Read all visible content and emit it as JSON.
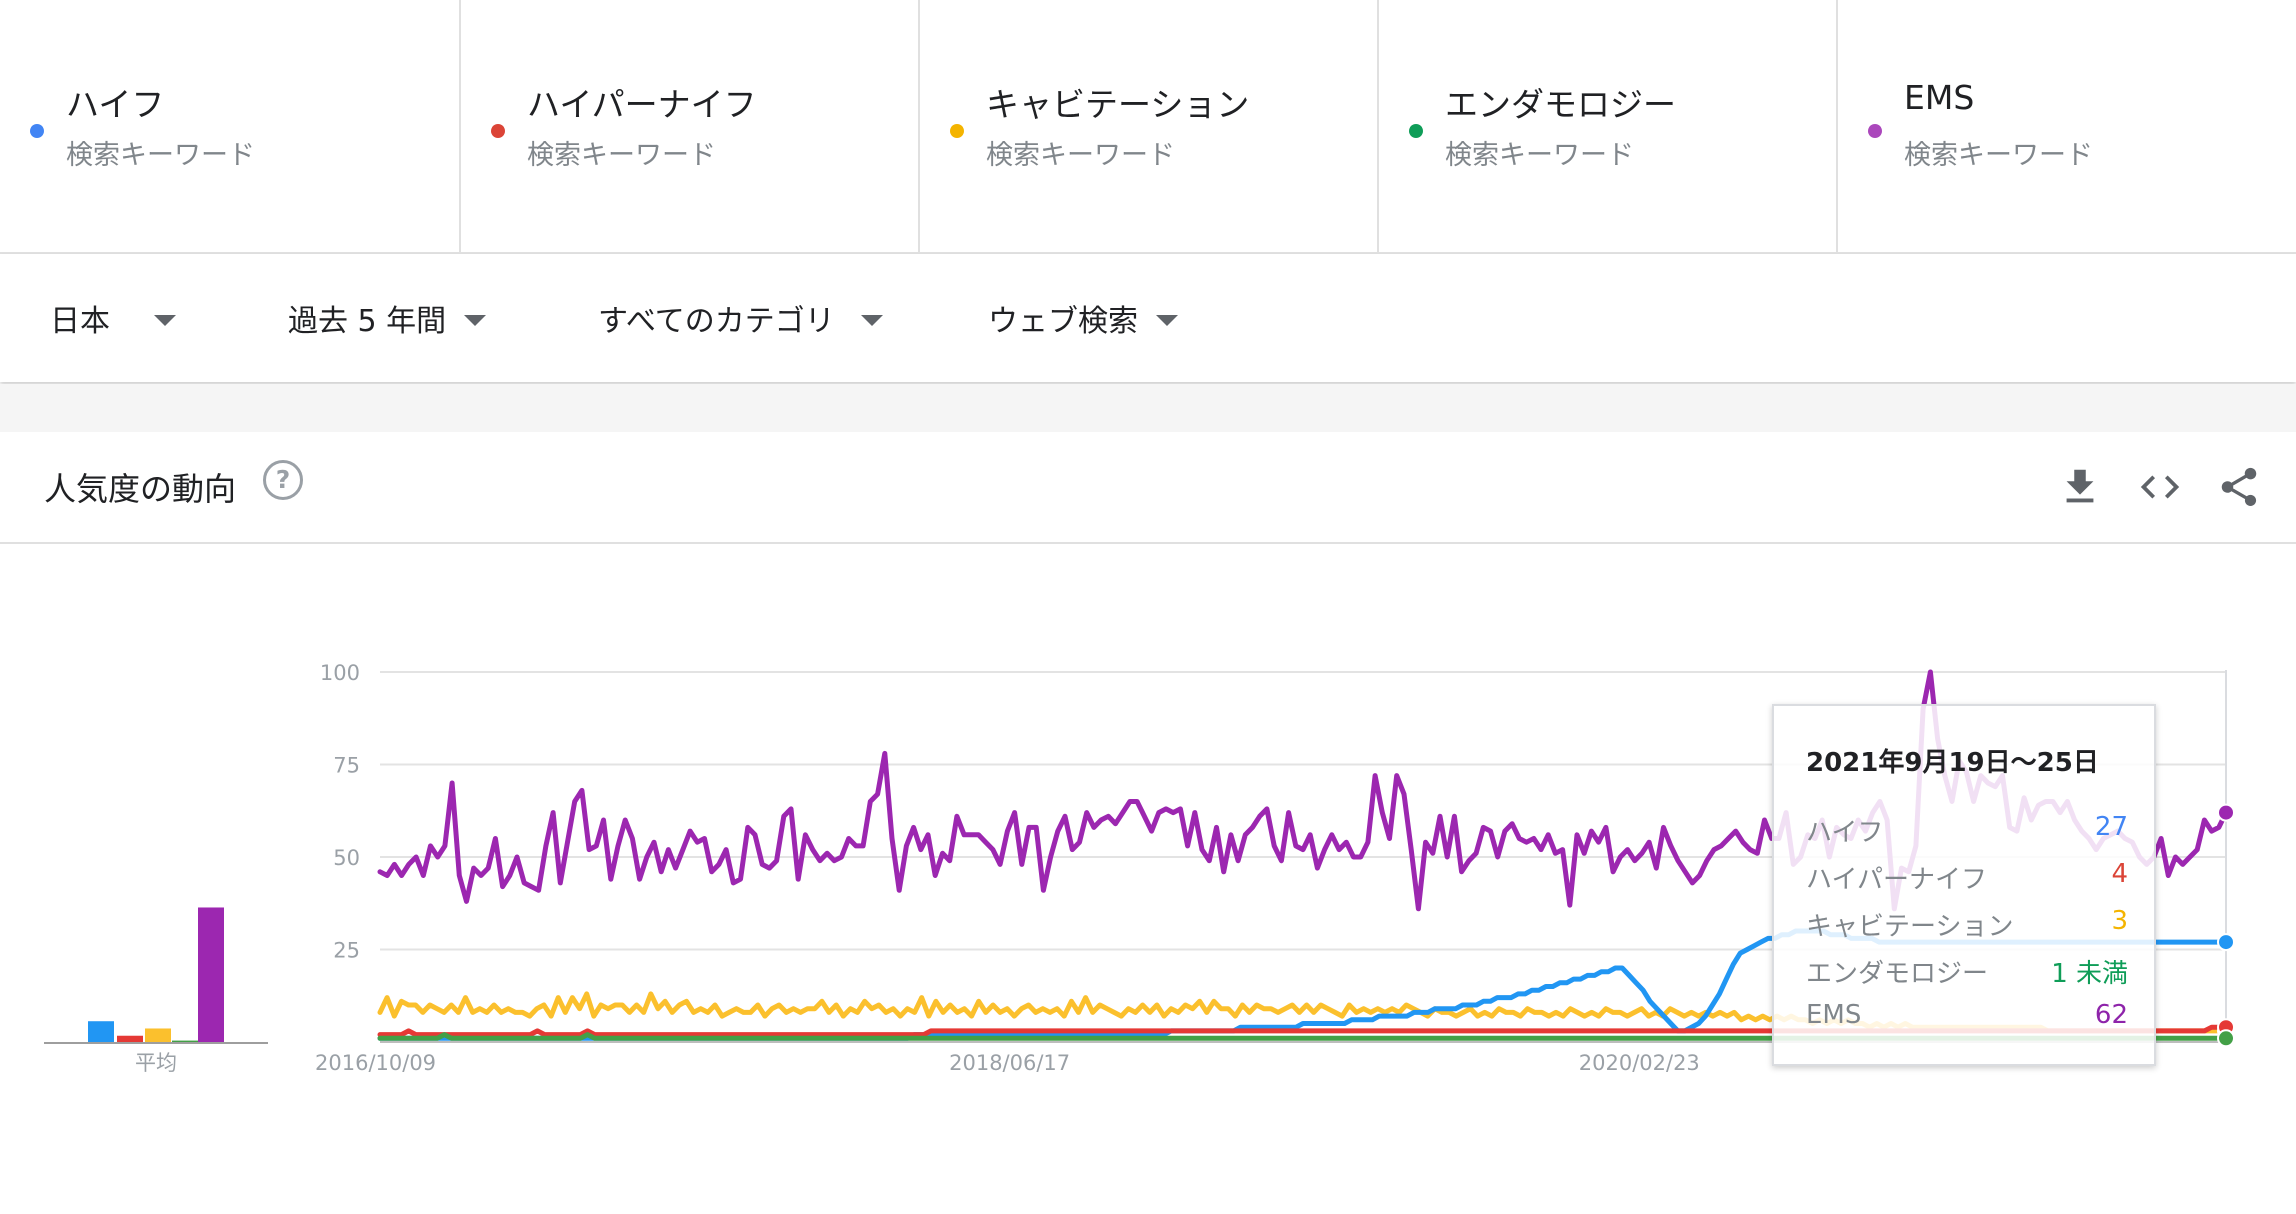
{
  "terms": [
    {
      "name": "ハイフ",
      "type": "検索キーワード",
      "color": "#4285f4"
    },
    {
      "name": "ハイパーナイフ",
      "type": "検索キーワード",
      "color": "#db4437"
    },
    {
      "name": "キャビテーション",
      "type": "検索キーワード",
      "color": "#f4b400"
    },
    {
      "name": "エンダモロジー",
      "type": "検索キーワード",
      "color": "#0f9d58"
    },
    {
      "name": "EMS",
      "type": "検索キーワード",
      "color": "#ab47bc"
    }
  ],
  "filters": {
    "region": "日本",
    "period": "過去 5 年間",
    "category": "すべてのカテゴリ",
    "search_type": "ウェブ検索"
  },
  "section": {
    "title": "人気度の動向",
    "help_glyph": "?",
    "actions": [
      "download-icon",
      "embed-icon",
      "share-icon"
    ]
  },
  "tooltip": {
    "date": "2021年9月19日〜25日",
    "rows": [
      {
        "label": "ハイフ",
        "value": "27",
        "color": "#4285f4"
      },
      {
        "label": "ハイパーナイフ",
        "value": "4",
        "color": "#db4437"
      },
      {
        "label": "キャビテーション",
        "value": "3",
        "color": "#f4b400"
      },
      {
        "label": "エンダモロジー",
        "value": "1 未満",
        "color": "#0f9d58"
      },
      {
        "label": "EMS",
        "value": "62",
        "color": "#8e24aa"
      }
    ]
  },
  "chart_data": {
    "type": "line",
    "average_label": "平均",
    "averages": [
      9,
      3,
      6,
      1,
      56
    ],
    "ylim": [
      0,
      100
    ],
    "y_ticks": [
      25,
      50,
      75,
      100
    ],
    "x_tick_labels": [
      "2016/10/09",
      "2018/06/17",
      "2020/02/23"
    ],
    "x_start": "2016/10/09",
    "x_end": "2021/09/19",
    "grid": true,
    "series": [
      {
        "name": "ハイフ",
        "color": "#2196f3",
        "values": [
          1,
          1,
          1,
          1,
          1,
          1,
          1,
          1,
          1,
          1,
          1,
          1,
          1,
          1,
          1,
          1,
          1,
          1,
          1,
          1,
          1,
          1,
          1,
          1,
          1,
          1,
          1,
          1,
          1,
          1,
          1,
          1,
          1,
          1,
          1,
          1,
          1,
          1,
          1,
          1,
          1,
          1,
          1,
          1,
          1,
          1,
          1,
          1,
          1,
          1,
          1,
          1,
          1,
          1,
          1,
          1,
          1,
          1,
          1,
          1,
          1,
          1,
          1,
          1,
          1,
          1,
          1,
          1,
          1,
          1,
          1,
          1,
          1,
          1,
          1,
          1,
          1,
          2,
          2,
          2,
          2,
          2,
          2,
          2,
          2,
          2,
          2,
          2,
          2,
          2,
          2,
          2,
          2,
          2,
          2,
          2,
          2,
          2,
          2,
          2,
          2,
          2,
          2,
          2,
          2,
          2,
          2,
          2,
          2,
          2,
          2,
          2,
          2,
          2,
          3,
          3,
          3,
          3,
          3,
          3,
          3,
          3,
          3,
          3,
          4,
          4,
          4,
          4,
          4,
          4,
          4,
          4,
          4,
          5,
          5,
          5,
          5,
          5,
          5,
          5,
          6,
          6,
          6,
          6,
          7,
          7,
          7,
          7,
          7,
          8,
          8,
          8,
          9,
          9,
          9,
          9,
          10,
          10,
          10,
          11,
          11,
          12,
          12,
          12,
          13,
          13,
          14,
          14,
          15,
          15,
          16,
          16,
          17,
          17,
          18,
          18,
          19,
          19,
          20,
          20,
          18,
          16,
          14,
          11,
          9,
          7,
          5,
          3,
          3,
          4,
          5,
          7,
          10,
          13,
          17,
          21,
          24,
          25,
          26,
          27,
          28,
          28,
          29,
          29,
          30,
          30,
          30,
          30,
          30,
          29,
          29,
          29,
          28,
          28,
          28,
          28,
          27,
          27,
          27,
          27,
          27,
          27,
          27,
          27,
          27,
          27,
          27,
          27,
          27,
          27,
          27,
          27,
          27,
          27,
          27,
          27,
          27,
          27,
          27,
          27,
          27,
          27,
          27,
          27,
          27,
          27,
          27,
          27,
          27,
          27,
          27,
          27,
          27,
          27,
          27,
          27,
          27,
          27,
          27,
          27,
          27,
          27,
          27,
          27,
          27,
          27,
          27
        ]
      },
      {
        "name": "ハイパーナイフ",
        "color": "#e53935",
        "values": [
          2,
          2,
          2,
          2,
          3,
          2,
          2,
          2,
          2,
          2,
          2,
          2,
          2,
          2,
          2,
          2,
          2,
          2,
          2,
          2,
          2,
          2,
          3,
          2,
          2,
          2,
          2,
          2,
          2,
          3,
          2,
          2,
          2,
          2,
          2,
          2,
          2,
          2,
          2,
          2,
          2,
          2,
          2,
          2,
          2,
          2,
          2,
          2,
          2,
          2,
          2,
          2,
          2,
          2,
          2,
          2,
          2,
          2,
          2,
          2,
          2,
          2,
          2,
          2,
          2,
          2,
          2,
          2,
          2,
          2,
          2,
          2,
          2,
          2,
          2,
          2,
          2,
          3,
          3,
          3,
          3,
          3,
          3,
          3,
          3,
          3,
          3,
          3,
          3,
          3,
          3,
          3,
          3,
          3,
          3,
          3,
          3,
          3,
          3,
          3,
          3,
          3,
          3,
          3,
          3,
          3,
          3,
          3,
          3,
          3,
          3,
          3,
          3,
          3,
          3,
          3,
          3,
          3,
          3,
          3,
          3,
          3,
          3,
          3,
          3,
          3,
          3,
          3,
          3,
          3,
          3,
          3,
          3,
          3,
          3,
          3,
          3,
          3,
          3,
          3,
          3,
          3,
          3,
          3,
          3,
          3,
          3,
          3,
          3,
          3,
          3,
          3,
          3,
          3,
          3,
          3,
          3,
          3,
          3,
          3,
          3,
          3,
          3,
          3,
          3,
          3,
          3,
          3,
          3,
          3,
          3,
          3,
          3,
          3,
          3,
          3,
          3,
          3,
          3,
          3,
          3,
          3,
          3,
          3,
          3,
          3,
          3,
          3,
          3,
          3,
          3,
          3,
          3,
          3,
          3,
          3,
          3,
          3,
          3,
          3,
          3,
          3,
          3,
          3,
          3,
          3,
          3,
          3,
          3,
          3,
          3,
          3,
          3,
          3,
          3,
          3,
          3,
          3,
          3,
          3,
          3,
          3,
          3,
          3,
          3,
          3,
          3,
          3,
          3,
          3,
          3,
          3,
          3,
          3,
          3,
          3,
          3,
          3,
          3,
          3,
          3,
          3,
          3,
          3,
          3,
          3,
          3,
          3,
          3,
          3,
          3,
          3,
          3,
          3,
          3,
          3,
          4,
          4,
          4
        ]
      },
      {
        "name": "キャビテーション",
        "color": "#fbc02d",
        "values": [
          8,
          12,
          7,
          11,
          10,
          10,
          8,
          10,
          9,
          8,
          10,
          8,
          12,
          8,
          9,
          8,
          10,
          8,
          9,
          8,
          8,
          7,
          9,
          10,
          7,
          12,
          8,
          12,
          9,
          13,
          7,
          10,
          9,
          10,
          10,
          8,
          10,
          8,
          13,
          9,
          11,
          8,
          10,
          11,
          8,
          9,
          8,
          10,
          7,
          8,
          9,
          8,
          8,
          10,
          7,
          9,
          10,
          8,
          9,
          8,
          9,
          9,
          11,
          8,
          10,
          7,
          9,
          8,
          11,
          9,
          10,
          8,
          9,
          7,
          9,
          8,
          12,
          7,
          11,
          8,
          10,
          8,
          9,
          7,
          11,
          8,
          10,
          8,
          9,
          7,
          9,
          10,
          8,
          9,
          8,
          9,
          7,
          11,
          8,
          12,
          8,
          10,
          9,
          8,
          7,
          9,
          8,
          10,
          8,
          10,
          7,
          9,
          8,
          10,
          9,
          11,
          8,
          11,
          9,
          9,
          7,
          10,
          8,
          10,
          9,
          9,
          8,
          9,
          10,
          8,
          10,
          8,
          10,
          9,
          8,
          7,
          10,
          8,
          9,
          8,
          9,
          8,
          9,
          8,
          10,
          9,
          8,
          7,
          9,
          8,
          8,
          7,
          8,
          9,
          7,
          8,
          7,
          9,
          8,
          8,
          7,
          9,
          8,
          8,
          7,
          8,
          7,
          9,
          8,
          7,
          8,
          7,
          9,
          8,
          8,
          7,
          8,
          9,
          7,
          8,
          7,
          9,
          8,
          7,
          8,
          7,
          8,
          7,
          8,
          7,
          8,
          6,
          7,
          6,
          7,
          6,
          7,
          6,
          7,
          6,
          6,
          5,
          6,
          5,
          6,
          5,
          6,
          5,
          5,
          4,
          5,
          4,
          5,
          4,
          5,
          4,
          4,
          4,
          4,
          4,
          4,
          4,
          4,
          4,
          4,
          4,
          4,
          4,
          4,
          4,
          4,
          4,
          4,
          4,
          3,
          3,
          3,
          3,
          3,
          3,
          3,
          3,
          3,
          3,
          3,
          3,
          3,
          3,
          3,
          3,
          3,
          3,
          3,
          3,
          3,
          3,
          3,
          3,
          3,
          3
        ]
      },
      {
        "name": "エンダモロジー",
        "color": "#43a047",
        "values": [
          1,
          1,
          1,
          1,
          1,
          1,
          1,
          1,
          1,
          2,
          1,
          1,
          1,
          1,
          1,
          1,
          1,
          1,
          1,
          1,
          1,
          1,
          1,
          1,
          1,
          1,
          1,
          1,
          1,
          2,
          1,
          1,
          1,
          1,
          1,
          1,
          1,
          1,
          1,
          1,
          1,
          1,
          1,
          1,
          1,
          1,
          1,
          1,
          1,
          1,
          1,
          1,
          1,
          1,
          1,
          1,
          1,
          1,
          1,
          1,
          1,
          1,
          1,
          1,
          1,
          1,
          1,
          1,
          1,
          1,
          1,
          1,
          1,
          1,
          1,
          1,
          1,
          1,
          1,
          1,
          1,
          1,
          1,
          1,
          1,
          1,
          1,
          1,
          1,
          1,
          1,
          1,
          1,
          1,
          1,
          1,
          1,
          1,
          1,
          1,
          1,
          1,
          1,
          1,
          1,
          1,
          1,
          1,
          1,
          1,
          1,
          1,
          1,
          1,
          1,
          1,
          1,
          1,
          1,
          1,
          1,
          1,
          1,
          1,
          1,
          1,
          1,
          1,
          1,
          1,
          1,
          1,
          1,
          1,
          1,
          1,
          1,
          1,
          1,
          1,
          1,
          1,
          1,
          1,
          1,
          1,
          1,
          1,
          1,
          1,
          1,
          1,
          1,
          1,
          1,
          1,
          1,
          1,
          1,
          1,
          1,
          1,
          1,
          1,
          1,
          1,
          1,
          1,
          1,
          1,
          1,
          1,
          1,
          1,
          1,
          1,
          1,
          1,
          1,
          1,
          1,
          1,
          1,
          1,
          1,
          1,
          1,
          1,
          1,
          1,
          1,
          1,
          1,
          1,
          1,
          1,
          1,
          1,
          1,
          1,
          1,
          1,
          1,
          1,
          1,
          1,
          1,
          1,
          1,
          1,
          1,
          1,
          1,
          1,
          1,
          1,
          1,
          1,
          1,
          1,
          1,
          1,
          1,
          1,
          1,
          1,
          1,
          1,
          1,
          1,
          1,
          1,
          1,
          1,
          1,
          1,
          1,
          1,
          1,
          1,
          1,
          1,
          1,
          1,
          1,
          1,
          1,
          1,
          1,
          1,
          1,
          1,
          1,
          1,
          1,
          1,
          1,
          1,
          1
        ]
      },
      {
        "name": "EMS",
        "color": "#9c27b0",
        "values": [
          46,
          45,
          48,
          45,
          48,
          50,
          45,
          53,
          50,
          53,
          70,
          45,
          38,
          47,
          45,
          47,
          55,
          42,
          45,
          50,
          43,
          42,
          41,
          53,
          62,
          43,
          54,
          65,
          68,
          52,
          53,
          60,
          44,
          53,
          60,
          55,
          44,
          50,
          54,
          46,
          52,
          47,
          52,
          57,
          54,
          55,
          46,
          48,
          52,
          43,
          44,
          58,
          56,
          48,
          47,
          49,
          61,
          63,
          44,
          56,
          52,
          49,
          51,
          49,
          50,
          55,
          53,
          53,
          65,
          67,
          78,
          55,
          41,
          53,
          58,
          52,
          56,
          45,
          51,
          49,
          61,
          56,
          56,
          56,
          54,
          52,
          48,
          57,
          62,
          48,
          58,
          58,
          41,
          50,
          57,
          61,
          52,
          54,
          62,
          58,
          60,
          61,
          59,
          62,
          65,
          65,
          61,
          57,
          62,
          63,
          62,
          63,
          53,
          62,
          52,
          49,
          58,
          46,
          56,
          49,
          56,
          58,
          61,
          63,
          53,
          49,
          62,
          53,
          52,
          56,
          47,
          52,
          56,
          52,
          54,
          50,
          50,
          54,
          72,
          62,
          55,
          72,
          67,
          52,
          36,
          54,
          51,
          61,
          50,
          61,
          46,
          49,
          51,
          58,
          57,
          50,
          57,
          59,
          55,
          54,
          55,
          52,
          56,
          51,
          52,
          37,
          56,
          51,
          57,
          54,
          58,
          46,
          50,
          52,
          49,
          51,
          54,
          47,
          58,
          53,
          49,
          46,
          43,
          45,
          49,
          52,
          53,
          55,
          57,
          54,
          52,
          51,
          60,
          55,
          55,
          62,
          48,
          50,
          56,
          55,
          60,
          50,
          58,
          56,
          55,
          60,
          57,
          62,
          65,
          60,
          36,
          47,
          46,
          53,
          90,
          100,
          82,
          72,
          65,
          76,
          73,
          65,
          72,
          70,
          69,
          72,
          58,
          57,
          66,
          60,
          64,
          65,
          65,
          62,
          65,
          60,
          57,
          55,
          52,
          55,
          56,
          57,
          55,
          54,
          50,
          48,
          50,
          55,
          45,
          50,
          48,
          50,
          52,
          60,
          57,
          58,
          62
        ]
      }
    ]
  }
}
